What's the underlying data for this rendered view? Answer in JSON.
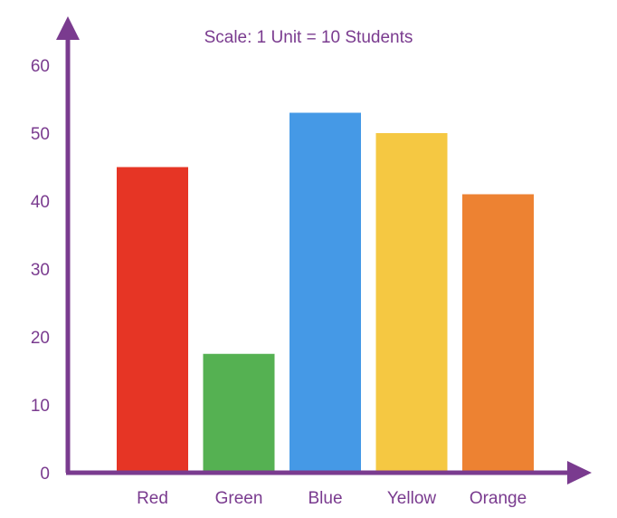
{
  "chart_data": {
    "type": "bar",
    "title": "Scale: 1 Unit = 10 Students",
    "xlabel": "",
    "ylabel": "",
    "categories": [
      "Red",
      "Green",
      "Blue",
      "Yellow",
      "Orange"
    ],
    "values": [
      45,
      17.5,
      53,
      50,
      41
    ],
    "bar_colors": [
      "#e63525",
      "#55b152",
      "#4599e6",
      "#f5c842",
      "#ed8232"
    ],
    "ylim": [
      0,
      60
    ],
    "yticks": [
      "0",
      "10",
      "20",
      "30",
      "40",
      "50",
      "60"
    ],
    "grid": false,
    "legend": "none",
    "axis_color": "#7a3b8f",
    "text_color": "#7a3b8f"
  }
}
